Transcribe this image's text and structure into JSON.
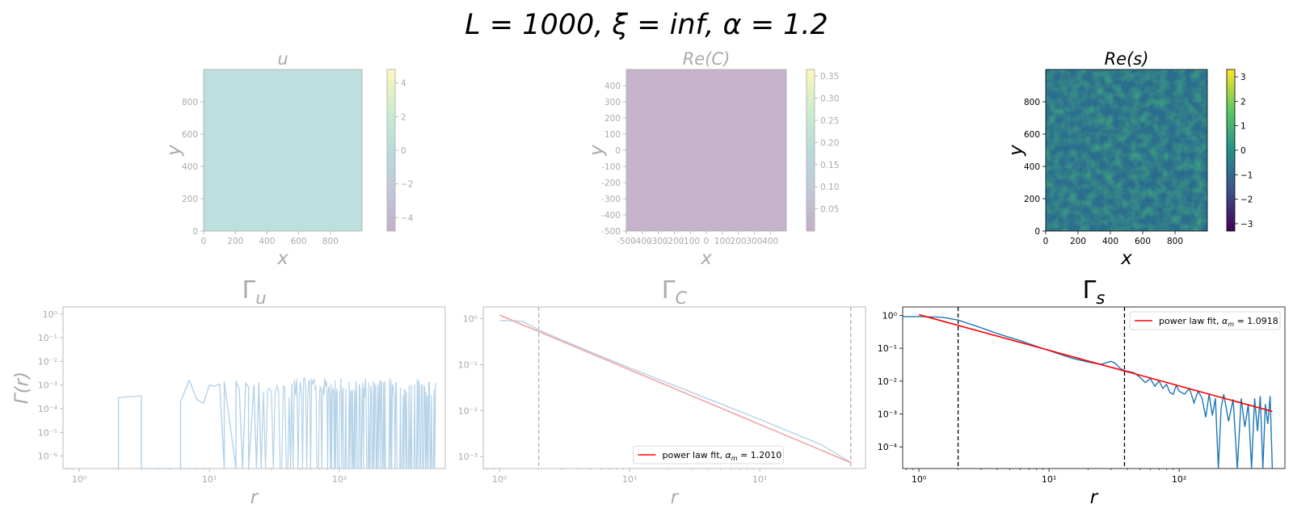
{
  "figure": {
    "title": "L = 1000, ξ = inf, α = 1.2"
  },
  "colors": {
    "faded": "#aaaaaa",
    "dark": "#000000",
    "line": "#1f77b4",
    "fit": "#ff0000",
    "fit_faded": "#f4a3a3",
    "line_faded": "#b4d2e8"
  },
  "chart_data": [
    {
      "id": "u",
      "type": "heatmap",
      "title": "u",
      "xlabel": "x",
      "ylabel": "y",
      "xlim": [
        0,
        1000
      ],
      "ylim": [
        0,
        1000
      ],
      "xticks": [
        "0",
        "200",
        "400",
        "600",
        "800"
      ],
      "xtick_values": [
        0,
        200,
        400,
        600,
        800
      ],
      "yticks": [
        "0",
        "200",
        "400",
        "600",
        "800"
      ],
      "ytick_values": [
        0,
        200,
        400,
        600,
        800
      ],
      "colorbar": {
        "colormap": "viridis",
        "range": [
          -4.8,
          4.8
        ],
        "ticks": [
          "−4",
          "−2",
          "0",
          "2",
          "4"
        ],
        "tick_values": [
          -4,
          -2,
          0,
          2,
          4
        ]
      },
      "faded": true,
      "fill": "#bddfdd"
    },
    {
      "id": "C",
      "type": "heatmap",
      "title": "Re(C)",
      "xlabel": "x",
      "ylabel": "y",
      "xlim": [
        -500,
        500
      ],
      "ylim": [
        -500,
        500
      ],
      "xticks": [
        "-500",
        "-400",
        "-300",
        "-200",
        "-100",
        "0",
        "100",
        "200",
        "300",
        "400"
      ],
      "xtick_values": [
        -500,
        -400,
        -300,
        -200,
        -100,
        0,
        100,
        200,
        300,
        400
      ],
      "yticks": [
        "-500",
        "-400",
        "-300",
        "-200",
        "-100",
        "0",
        "100",
        "200",
        "300",
        "400"
      ],
      "ytick_values": [
        -500,
        -400,
        -300,
        -200,
        -100,
        0,
        100,
        200,
        300,
        400
      ],
      "colorbar": {
        "colormap": "viridis",
        "range": [
          0.0,
          0.365
        ],
        "ticks": [
          "0.05",
          "0.10",
          "0.15",
          "0.20",
          "0.25",
          "0.30",
          "0.35"
        ],
        "tick_values": [
          0.05,
          0.1,
          0.15,
          0.2,
          0.25,
          0.3,
          0.35
        ]
      },
      "faded": true,
      "fill": "#c5b3cc"
    },
    {
      "id": "s",
      "type": "heatmap",
      "title": "Re(s)",
      "xlabel": "x",
      "ylabel": "y",
      "xlim": [
        0,
        1000
      ],
      "ylim": [
        0,
        1000
      ],
      "xticks": [
        "0",
        "200",
        "400",
        "600",
        "800"
      ],
      "xtick_values": [
        0,
        200,
        400,
        600,
        800
      ],
      "yticks": [
        "0",
        "200",
        "400",
        "600",
        "800"
      ],
      "ytick_values": [
        0,
        200,
        400,
        600,
        800
      ],
      "colorbar": {
        "colormap": "viridis",
        "range": [
          -3.3,
          3.3
        ],
        "ticks": [
          "−3",
          "−2",
          "−1",
          "0",
          "1",
          "2",
          "3"
        ],
        "tick_values": [
          -3,
          -2,
          -1,
          0,
          1,
          2,
          3
        ]
      },
      "faded": false,
      "texture": "random-field"
    },
    {
      "id": "gamma_u",
      "type": "line",
      "title": "Γu",
      "title_base": "Γ",
      "title_sub": "u",
      "xlabel": "r",
      "ylabel": "Γ(r)",
      "xscale": "log",
      "yscale": "log",
      "xlim": [
        0.75,
        650
      ],
      "ylim": [
        3e-07,
        2.0
      ],
      "xticks": [
        "10⁰",
        "10¹",
        "10²"
      ],
      "xtick_values": [
        1,
        10,
        100
      ],
      "yticks": [
        "10⁻⁶",
        "10⁻⁵",
        "10⁻⁴",
        "10⁻³",
        "10⁻²",
        "10⁻¹",
        "10⁰"
      ],
      "ytick_values": [
        1e-06,
        1e-05,
        0.0001,
        0.001,
        0.01,
        0.1,
        1
      ],
      "faded": true,
      "series": [
        {
          "x": [
            2,
            2,
            3,
            3,
            6,
            6,
            7,
            8,
            9,
            10,
            11,
            12,
            13,
            13,
            16,
            16,
            17,
            18,
            19,
            20,
            20,
            22,
            23,
            24,
            25
          ],
          "y": [
            3e-07,
            0.0003,
            0.00035,
            3e-07,
            3e-07,
            0.0002,
            0.0016,
            0.00025,
            0.00017,
            0.001,
            0.0009,
            0.0011,
            3e-07,
            0.0014,
            3e-07,
            0.0015,
            0.0006,
            3e-07,
            0.0012,
            0.0008,
            3e-07,
            0.001,
            3e-07,
            0.0013,
            3e-07
          ]
        }
      ],
      "noise_region": {
        "x_start": 25,
        "x_end": 550,
        "y_peak_range": [
          0.0003,
          0.002
        ],
        "y_floor": 3e-07
      }
    },
    {
      "id": "gamma_C",
      "type": "line",
      "title": "ΓC",
      "title_base": "Γ",
      "title_sub": "C",
      "xlabel": "r",
      "ylabel": "",
      "xscale": "log",
      "yscale": "log",
      "xlim": [
        0.75,
        650
      ],
      "ylim": [
        0.00055,
        1.8
      ],
      "xticks": [
        "10⁰",
        "10¹",
        "10²"
      ],
      "xtick_values": [
        1,
        10,
        100
      ],
      "yticks": [
        "10⁻³",
        "10⁻²",
        "10⁻¹",
        "10⁰"
      ],
      "ytick_values": [
        0.001,
        0.01,
        0.1,
        1
      ],
      "faded": true,
      "series": [
        {
          "x": [
            1,
            1.5,
            2,
            3,
            5,
            10,
            30,
            100,
            300,
            500
          ],
          "y": [
            0.92,
            0.88,
            0.57,
            0.35,
            0.19,
            0.085,
            0.025,
            0.0065,
            0.0018,
            0.00075
          ]
        }
      ],
      "fit": {
        "label": "power law fit, αm = 1.2010",
        "label_prefix": "power law fit, ",
        "alpha_text": "α",
        "alpha_sub": "m",
        "alpha_value": " = 1.2010",
        "x": [
          1,
          500
        ],
        "y": [
          1.2,
          0.00074
        ]
      },
      "vlines": [
        2,
        500
      ],
      "legend_loc": "lower center"
    },
    {
      "id": "gamma_s",
      "type": "line",
      "title": "Γs",
      "title_base": "Γ",
      "title_sub": "s",
      "xlabel": "r",
      "ylabel": "",
      "xscale": "log",
      "yscale": "log",
      "xlim": [
        0.75,
        650
      ],
      "ylim": [
        2.2e-05,
        1.8
      ],
      "xticks": [
        "10⁰",
        "10¹",
        "10²"
      ],
      "xtick_values": [
        1,
        10,
        100
      ],
      "yticks": [
        "10⁻⁴",
        "10⁻³",
        "10⁻²",
        "10⁻¹",
        "10⁰"
      ],
      "ytick_values": [
        0.0001,
        0.001,
        0.01,
        0.1,
        1
      ],
      "faded": false,
      "series": [
        {
          "x": [
            0.75,
            1,
            1.5,
            2,
            3,
            4,
            6,
            10,
            15,
            20,
            25,
            30,
            32,
            35,
            38,
            40,
            45,
            50,
            55,
            60,
            65,
            70,
            75,
            80,
            85,
            90,
            95,
            100,
            110,
            120,
            130,
            140,
            150,
            160,
            170,
            180,
            190,
            200,
            210,
            220,
            240,
            260,
            280,
            300,
            320,
            340,
            360,
            380,
            400,
            420,
            440,
            460,
            480,
            500,
            520
          ],
          "y": [
            0.92,
            0.92,
            0.88,
            0.72,
            0.42,
            0.28,
            0.17,
            0.085,
            0.05,
            0.038,
            0.032,
            0.04,
            0.036,
            0.025,
            0.021,
            0.02,
            0.018,
            0.013,
            0.009,
            0.012,
            0.007,
            0.01,
            0.006,
            0.008,
            0.0045,
            0.004,
            0.0075,
            0.005,
            0.004,
            0.006,
            0.0022,
            0.005,
            0.003,
            0.0008,
            0.004,
            0.0009,
            0.003,
            2.2e-05,
            0.0015,
            0.004,
            0.0006,
            0.0028,
            2.2e-05,
            0.003,
            0.0004,
            0.002,
            2.2e-05,
            0.003,
            0.0003,
            0.0035,
            2.2e-05,
            0.002,
            0.0005,
            0.0035,
            2.2e-05
          ]
        }
      ],
      "fit": {
        "label": "power law fit, αm = 1.0918",
        "label_prefix": "power law fit, ",
        "alpha_text": "α",
        "alpha_sub": "m",
        "alpha_value": " = 1.0918",
        "x": [
          1,
          520
        ],
        "y": [
          1.05,
          0.0012
        ]
      },
      "vlines": [
        2,
        38
      ],
      "legend_loc": "upper right"
    }
  ]
}
